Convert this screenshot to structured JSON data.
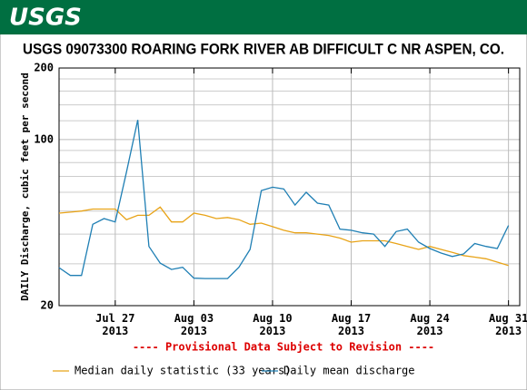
{
  "header": {
    "logo": "USGS"
  },
  "chart_data": {
    "type": "line",
    "title": "USGS 09073300 ROARING FORK RIVER AB DIFFICULT C NR ASPEN, CO.",
    "ylabel": "DAILY Discharge, cubic feet per second",
    "annotation": "---- Provisional Data Subject to Revision ----",
    "log_y": true,
    "grid": true,
    "ylim": [
      20,
      200
    ],
    "yticks": [
      20,
      100,
      200
    ],
    "ygrid": [
      30,
      40,
      50,
      60,
      70,
      80,
      90,
      120,
      140,
      160,
      180
    ],
    "xlim": [
      "2013-07-22",
      "2013-09-01"
    ],
    "xticks": [
      {
        "value": "2013-07-27",
        "label": "Jul 27\n2013"
      },
      {
        "value": "2013-08-03",
        "label": "Aug 03\n2013"
      },
      {
        "value": "2013-08-10",
        "label": "Aug 10\n2013"
      },
      {
        "value": "2013-08-17",
        "label": "Aug 17\n2013"
      },
      {
        "value": "2013-08-24",
        "label": "Aug 24\n2013"
      },
      {
        "value": "2013-08-31",
        "label": "Aug 31\n2013"
      }
    ],
    "x": [
      "2013-07-22",
      "2013-07-23",
      "2013-07-24",
      "2013-07-25",
      "2013-07-26",
      "2013-07-27",
      "2013-07-28",
      "2013-07-29",
      "2013-07-30",
      "2013-07-31",
      "2013-08-01",
      "2013-08-02",
      "2013-08-03",
      "2013-08-04",
      "2013-08-05",
      "2013-08-06",
      "2013-08-07",
      "2013-08-08",
      "2013-08-09",
      "2013-08-10",
      "2013-08-11",
      "2013-08-12",
      "2013-08-13",
      "2013-08-14",
      "2013-08-15",
      "2013-08-16",
      "2013-08-17",
      "2013-08-18",
      "2013-08-19",
      "2013-08-20",
      "2013-08-21",
      "2013-08-22",
      "2013-08-23",
      "2013-08-24",
      "2013-08-25",
      "2013-08-26",
      "2013-08-27",
      "2013-08-28",
      "2013-08-29",
      "2013-08-30",
      "2013-08-31"
    ],
    "series": [
      {
        "name": "Median daily statistic (33 years)",
        "color": "#e8a317",
        "values": [
          49,
          49.5,
          50,
          51,
          51,
          51,
          46,
          48,
          48,
          52,
          45,
          45,
          49,
          48,
          46.5,
          47,
          46,
          44,
          44.5,
          43,
          41.5,
          40.5,
          40.5,
          40,
          39.5,
          38.5,
          37,
          37.5,
          37.5,
          37.5,
          36.5,
          35.5,
          34.5,
          35.5,
          34.5,
          33.5,
          32.5,
          32,
          31.5,
          30.5,
          29.5
        ]
      },
      {
        "name": "Daily mean discharge",
        "color": "#1f7fb4",
        "values": [
          28.9,
          26.8,
          26.8,
          44,
          46.5,
          45,
          73,
          121,
          35.5,
          30.2,
          28.4,
          29,
          26.1,
          26,
          26,
          26,
          29,
          34.5,
          61,
          63,
          62,
          53,
          60,
          54,
          53,
          42,
          41.5,
          40.5,
          40,
          35.5,
          41,
          42,
          37,
          34.8,
          33.3,
          32.2,
          33,
          36.5,
          35.5,
          34.8,
          43.5
        ]
      }
    ]
  }
}
